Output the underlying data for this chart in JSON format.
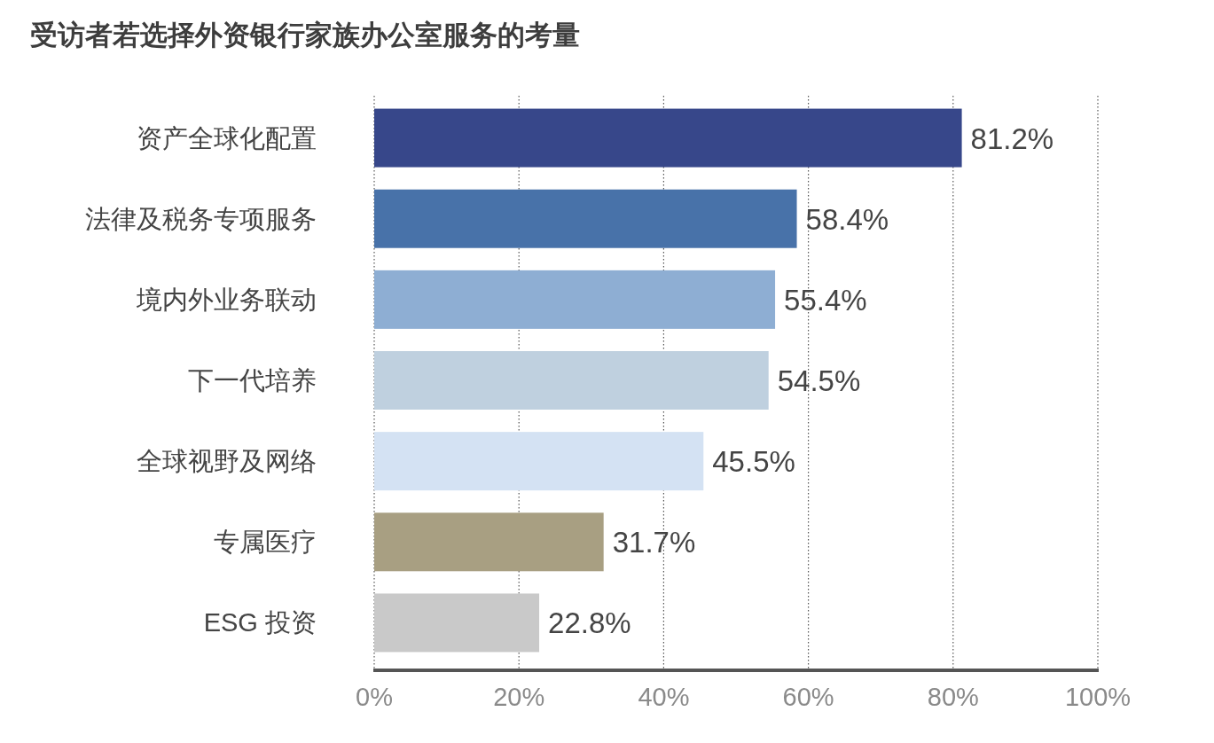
{
  "chart_data": {
    "type": "bar",
    "orientation": "horizontal",
    "title": "受访者若选择外资银行家族办公室服务的考量",
    "categories": [
      "资产全球化配置",
      "法律及税务专项服务",
      "境内外业务联动",
      "下一代培养",
      "全球视野及网络",
      "专属医疗",
      "ESG 投资"
    ],
    "values": [
      81.2,
      58.4,
      55.4,
      54.5,
      45.5,
      31.7,
      22.8
    ],
    "value_labels": [
      "81.2%",
      "58.4%",
      "55.4%",
      "54.5%",
      "45.5%",
      "31.7%",
      "22.8%"
    ],
    "colors": [
      "#37478a",
      "#4872a9",
      "#8eaed3",
      "#bfd0df",
      "#d4e2f3",
      "#a89f82",
      "#c9c9c9"
    ],
    "xlim": [
      0,
      100
    ],
    "xticks": [
      {
        "value": 0,
        "label": "0%"
      },
      {
        "value": 20,
        "label": "20%"
      },
      {
        "value": 40,
        "label": "40%"
      },
      {
        "value": 60,
        "label": "60%"
      },
      {
        "value": 80,
        "label": "80%"
      },
      {
        "value": 100,
        "label": "100%"
      }
    ],
    "grid": "x"
  }
}
